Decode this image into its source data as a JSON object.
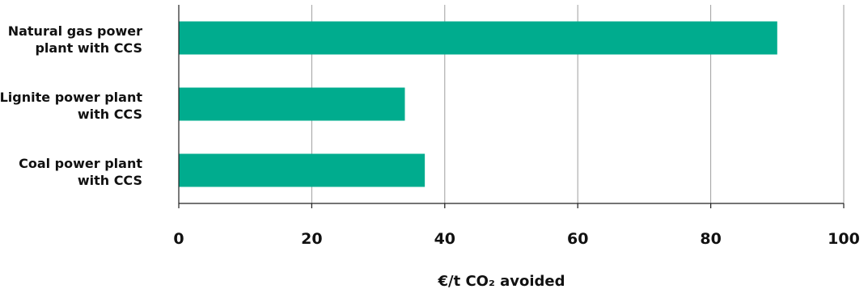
{
  "chart_data": {
    "type": "bar",
    "orientation": "horizontal",
    "categories": [
      [
        "Natural gas power",
        "plant with CCS"
      ],
      [
        "Lignite power plant",
        "with CCS"
      ],
      [
        "Coal power plant",
        "with CCS"
      ]
    ],
    "values": [
      90,
      34,
      37
    ],
    "xlabel": "€/t CO₂ avoided",
    "xlim": [
      0,
      100
    ],
    "xticks": [
      "0",
      "20",
      "40",
      "60",
      "80",
      "100"
    ],
    "grid": "vertical",
    "colors": {
      "bar": "#00ac8e",
      "grid": "#9e9e9e",
      "axis": "#222222"
    }
  }
}
